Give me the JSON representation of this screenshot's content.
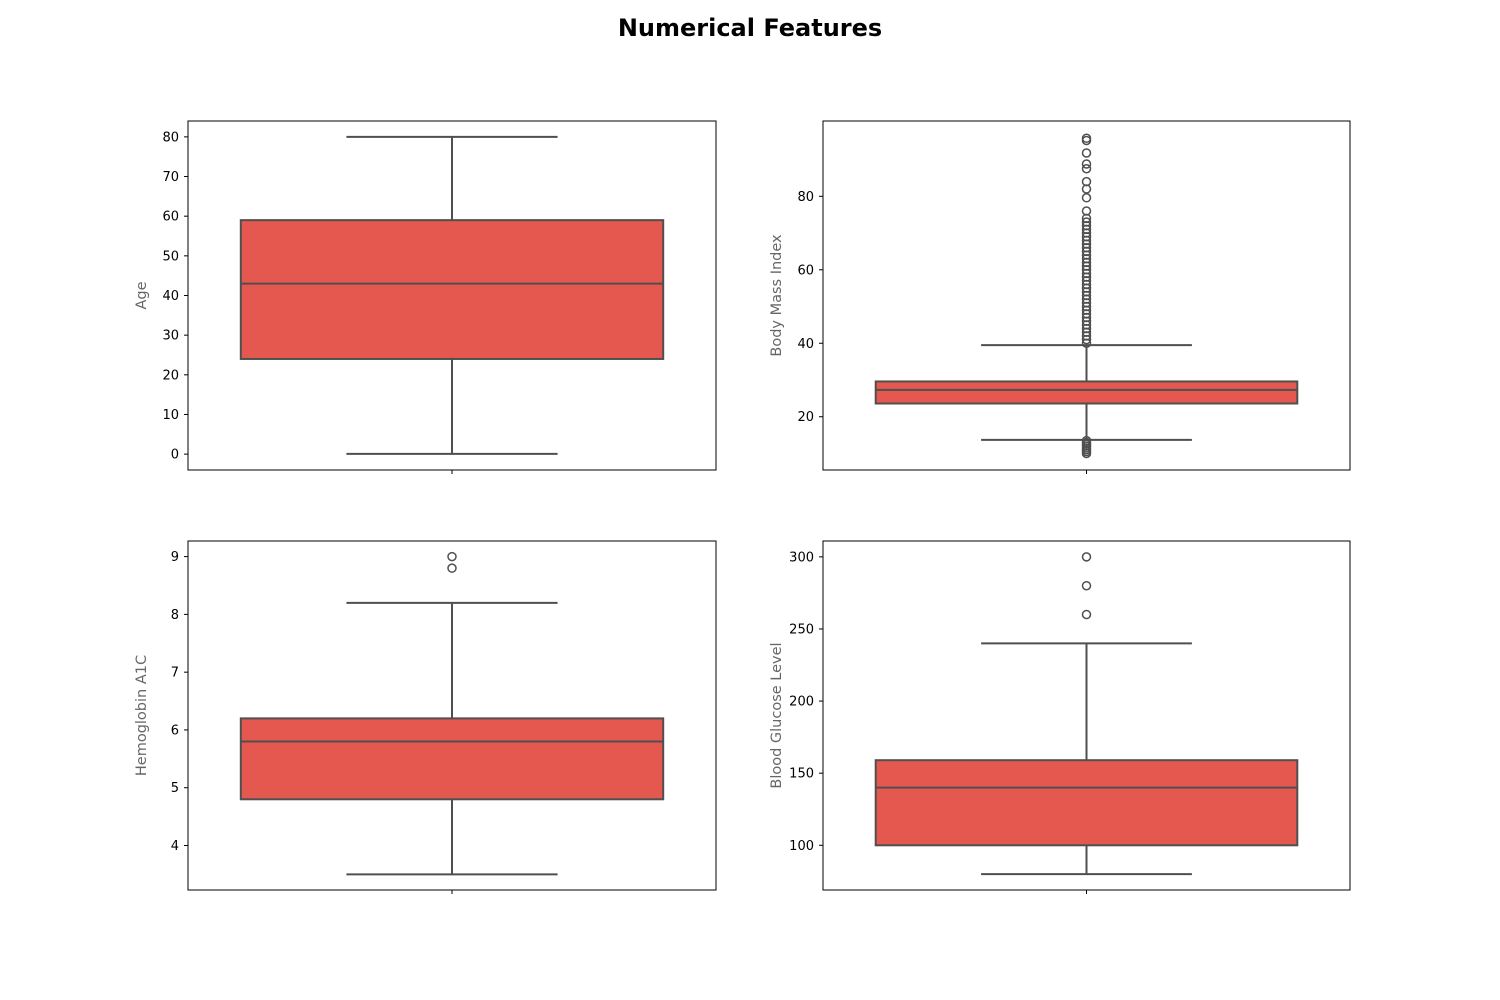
{
  "title": "Numerical Features",
  "colors": {
    "box_fill": "#e55850",
    "line": "#4f4f4f",
    "ylabel": "#666666",
    "frame": "#000000"
  },
  "chart_data": [
    {
      "type": "box",
      "ylabel": "Age",
      "ylim": [
        -4,
        84
      ],
      "yticks": [
        0,
        10,
        20,
        30,
        40,
        50,
        60,
        70,
        80
      ],
      "box": {
        "whislo": 0.08,
        "q1": 24,
        "median": 43,
        "q3": 59,
        "whishi": 80
      },
      "fliers": []
    },
    {
      "type": "box",
      "ylabel": "Body Mass Index",
      "ylim": [
        5.5,
        100.5
      ],
      "yticks": [
        20,
        40,
        60,
        80
      ],
      "box": {
        "whislo": 13.7,
        "q1": 23.6,
        "median": 27.3,
        "q3": 29.6,
        "whishi": 39.5
      },
      "fliers": [
        10.0,
        10.5,
        11.0,
        11.5,
        12.0,
        12.5,
        13.0,
        13.5,
        40.0,
        41.0,
        42.0,
        43.0,
        44.0,
        45.0,
        46.0,
        47.0,
        48.0,
        49.0,
        50.0,
        51.0,
        52.0,
        53.0,
        54.0,
        55.0,
        56.0,
        57.0,
        58.0,
        59.0,
        60.0,
        61.0,
        62.0,
        63.0,
        64.0,
        65.0,
        66.0,
        67.0,
        68.0,
        69.0,
        70.0,
        71.0,
        72.0,
        73.0,
        74.0,
        76.0,
        79.6,
        82.0,
        84.0,
        87.5,
        88.8,
        91.8,
        95.2,
        95.8
      ]
    },
    {
      "type": "box",
      "ylabel": "Hemoglobin A1C",
      "ylim": [
        3.23,
        9.27
      ],
      "yticks": [
        4,
        5,
        6,
        7,
        8,
        9
      ],
      "box": {
        "whislo": 3.5,
        "q1": 4.8,
        "median": 5.8,
        "q3": 6.2,
        "whishi": 8.2
      },
      "fliers": [
        8.8,
        9.0
      ]
    },
    {
      "type": "box",
      "ylabel": "Blood Glucose Level",
      "ylim": [
        69,
        311
      ],
      "yticks": [
        100,
        150,
        200,
        250,
        300
      ],
      "box": {
        "whislo": 80,
        "q1": 100,
        "median": 140,
        "q3": 159,
        "whishi": 240
      },
      "fliers": [
        260,
        280,
        300
      ]
    }
  ]
}
